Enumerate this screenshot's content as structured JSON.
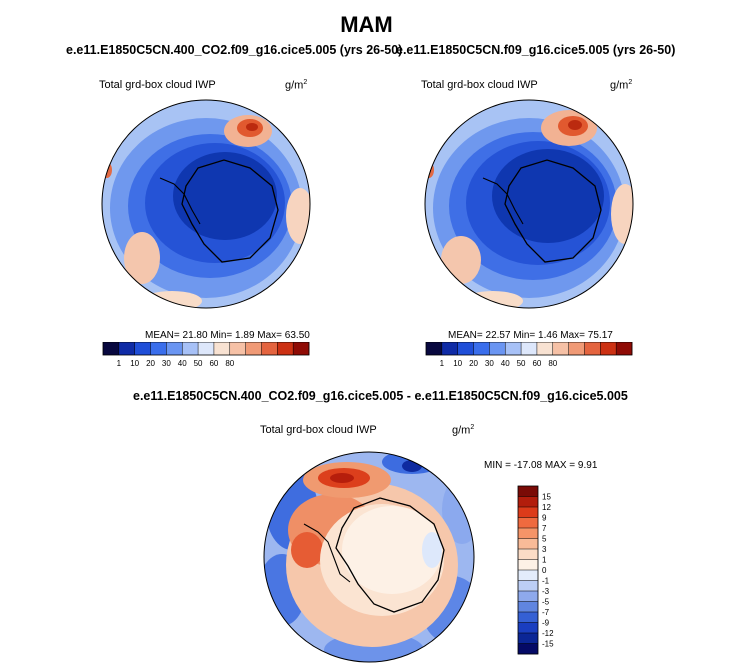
{
  "figure": {
    "season": "MAM",
    "diff_title": "e.e11.E1850C5CN.400_CO2.f09_g16.cice5.005 - e.e11.E1850C5CN.f09_g16.cice5.005"
  },
  "chart_data": [
    {
      "type": "heatmap",
      "projection": "polar-stereographic-south",
      "run_title": "e.e11.E1850C5CN.400_CO2.f09_g16.cice5.005 (yrs 26-50)",
      "variable": "Total grd-box cloud IWP",
      "units": "g/m",
      "units_sup": "2",
      "stats": {
        "mean": "21.80",
        "min": "1.89",
        "max": "63.50"
      },
      "stats_text": "MEAN=  21.80  Min=   1.89  Max=  63.50",
      "colorbar": {
        "orientation": "horizontal",
        "levels": [
          1,
          10,
          20,
          30,
          40,
          50,
          60,
          80
        ],
        "tick_labels": [
          "1",
          "10",
          "20",
          "30",
          "40",
          "50",
          "60",
          "80"
        ],
        "colors": [
          "#08083f",
          "#0f2ba6",
          "#1f4ed8",
          "#3a6eec",
          "#6a95f2",
          "#a7c1f7",
          "#dde7fb",
          "#f8e2d2",
          "#f6c1a6",
          "#f09a76",
          "#e4643f",
          "#cc3113",
          "#8f0b05"
        ]
      }
    },
    {
      "type": "heatmap",
      "projection": "polar-stereographic-south",
      "run_title": "e.e11.E1850C5CN.f09_g16.cice5.005 (yrs 26-50)",
      "variable": "Total grd-box cloud IWP",
      "units": "g/m",
      "units_sup": "2",
      "stats": {
        "mean": "22.57",
        "min": "1.46",
        "max": "75.17"
      },
      "stats_text": "MEAN=  22.57  Min=   1.46  Max=  75.17",
      "colorbar": {
        "orientation": "horizontal",
        "levels": [
          1,
          10,
          20,
          30,
          40,
          50,
          60,
          80
        ],
        "tick_labels": [
          "1",
          "10",
          "20",
          "30",
          "40",
          "50",
          "60",
          "80"
        ],
        "colors": [
          "#08083f",
          "#0f2ba6",
          "#1f4ed8",
          "#3a6eec",
          "#6a95f2",
          "#a7c1f7",
          "#dde7fb",
          "#f8e2d2",
          "#f6c1a6",
          "#f09a76",
          "#e4643f",
          "#cc3113",
          "#8f0b05"
        ]
      }
    },
    {
      "type": "heatmap",
      "projection": "polar-stereographic-south",
      "variable": "Total grd-box cloud IWP",
      "units": "g/m",
      "units_sup": "2",
      "stats": {
        "min": "-17.08",
        "max": "9.91"
      },
      "stats_text": "MIN = -17.08 MAX =   9.91",
      "colorbar": {
        "orientation": "vertical",
        "levels": [
          15,
          12,
          9,
          7,
          5,
          3,
          1,
          0,
          -1,
          -3,
          -5,
          -7,
          -9,
          -12,
          -15
        ],
        "tick_labels": [
          "15",
          "12",
          "9",
          "7",
          "5",
          "3",
          "1",
          "0",
          "-1",
          "-3",
          "-5",
          "-7",
          "-9",
          "-12",
          "-15"
        ],
        "colors": [
          "#7a0b06",
          "#b21d0c",
          "#dc3b1a",
          "#ef6a3f",
          "#f59468",
          "#f9bb98",
          "#fbdcc6",
          "#fdf1e6",
          "#e3ecfb",
          "#bccef5",
          "#8ea9ec",
          "#6085e0",
          "#3560d4",
          "#1a3ec0",
          "#0b2696",
          "#050a66"
        ]
      }
    }
  ]
}
